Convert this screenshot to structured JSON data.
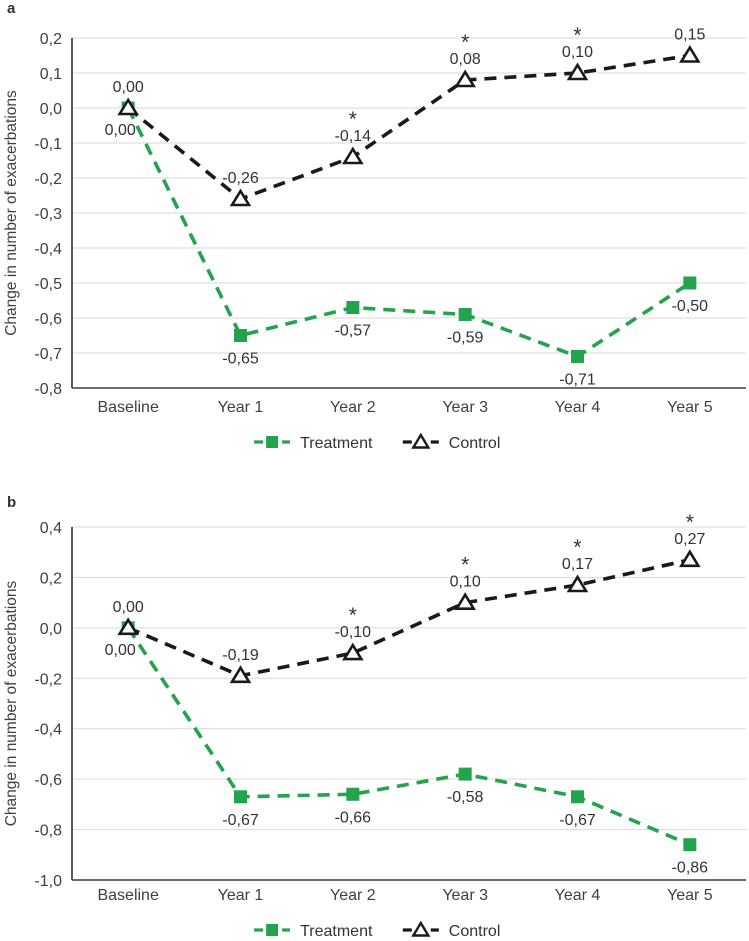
{
  "page": {
    "background_color": "#ffffff"
  },
  "chart_data": [
    {
      "panel_label": "a",
      "type": "line",
      "title": "",
      "xlabel": "",
      "ylabel": "Change in number of exacerbations",
      "categories": [
        "Baseline",
        "Year 1",
        "Year 2",
        "Year 3",
        "Year 4",
        "Year 5"
      ],
      "ylim": [
        -0.8,
        0.2
      ],
      "ytick_labels": [
        "0,2",
        "0,1",
        "0,0",
        "-0,1",
        "-0,2",
        "-0,3",
        "-0,4",
        "-0,5",
        "-0,6",
        "-0,7",
        "-0,8"
      ],
      "grid": true,
      "legend_position": "bottom",
      "significance_marker": "*",
      "series": [
        {
          "name": "Treatment",
          "color": "#22a34c",
          "marker": "square",
          "values": [
            0.0,
            -0.65,
            -0.57,
            -0.59,
            -0.71,
            -0.5
          ],
          "labels": [
            "0,00",
            "-0,65",
            "-0,57",
            "-0,59",
            "-0,71",
            "-0,50"
          ],
          "label_pos": [
            "above",
            "below",
            "below",
            "below",
            "below",
            "below"
          ],
          "asterisks": [
            false,
            false,
            false,
            false,
            false,
            false
          ]
        },
        {
          "name": "Control",
          "color": "#1a1a1a",
          "marker": "triangle",
          "values": [
            0.0,
            -0.26,
            -0.14,
            0.08,
            0.1,
            0.15
          ],
          "labels": [
            "0,00",
            "-0,26",
            "-0,14",
            "0,08",
            "0,10",
            "0,15"
          ],
          "label_pos": [
            "below",
            "above",
            "above",
            "above",
            "above",
            "above"
          ],
          "asterisks": [
            false,
            false,
            true,
            true,
            true,
            false
          ]
        }
      ]
    },
    {
      "panel_label": "b",
      "type": "line",
      "title": "",
      "xlabel": "",
      "ylabel": "Change in number of exacerbations",
      "categories": [
        "Baseline",
        "Year 1",
        "Year 2",
        "Year 3",
        "Year 4",
        "Year 5"
      ],
      "ylim": [
        -1.0,
        0.4
      ],
      "ytick_labels": [
        "0,4",
        "0,2",
        "0,0",
        "-0,2",
        "-0,4",
        "-0,6",
        "-0,8",
        "-1,0"
      ],
      "grid": true,
      "legend_position": "bottom",
      "significance_marker": "*",
      "series": [
        {
          "name": "Treatment",
          "color": "#22a34c",
          "marker": "square",
          "values": [
            0.0,
            -0.67,
            -0.66,
            -0.58,
            -0.67,
            -0.86
          ],
          "labels": [
            "0,00",
            "-0,67",
            "-0,66",
            "-0,58",
            "-0,67",
            "-0,86"
          ],
          "label_pos": [
            "above",
            "below",
            "below",
            "below",
            "below",
            "below"
          ],
          "asterisks": [
            false,
            false,
            false,
            false,
            false,
            false
          ]
        },
        {
          "name": "Control",
          "color": "#1a1a1a",
          "marker": "triangle",
          "values": [
            0.0,
            -0.19,
            -0.1,
            0.1,
            0.17,
            0.27
          ],
          "labels": [
            "0,00",
            "-0,19",
            "-0,10",
            "0,10",
            "0,17",
            "0,27"
          ],
          "label_pos": [
            "below",
            "above",
            "above",
            "above",
            "above",
            "above"
          ],
          "asterisks": [
            false,
            false,
            true,
            true,
            true,
            true
          ]
        }
      ]
    }
  ]
}
